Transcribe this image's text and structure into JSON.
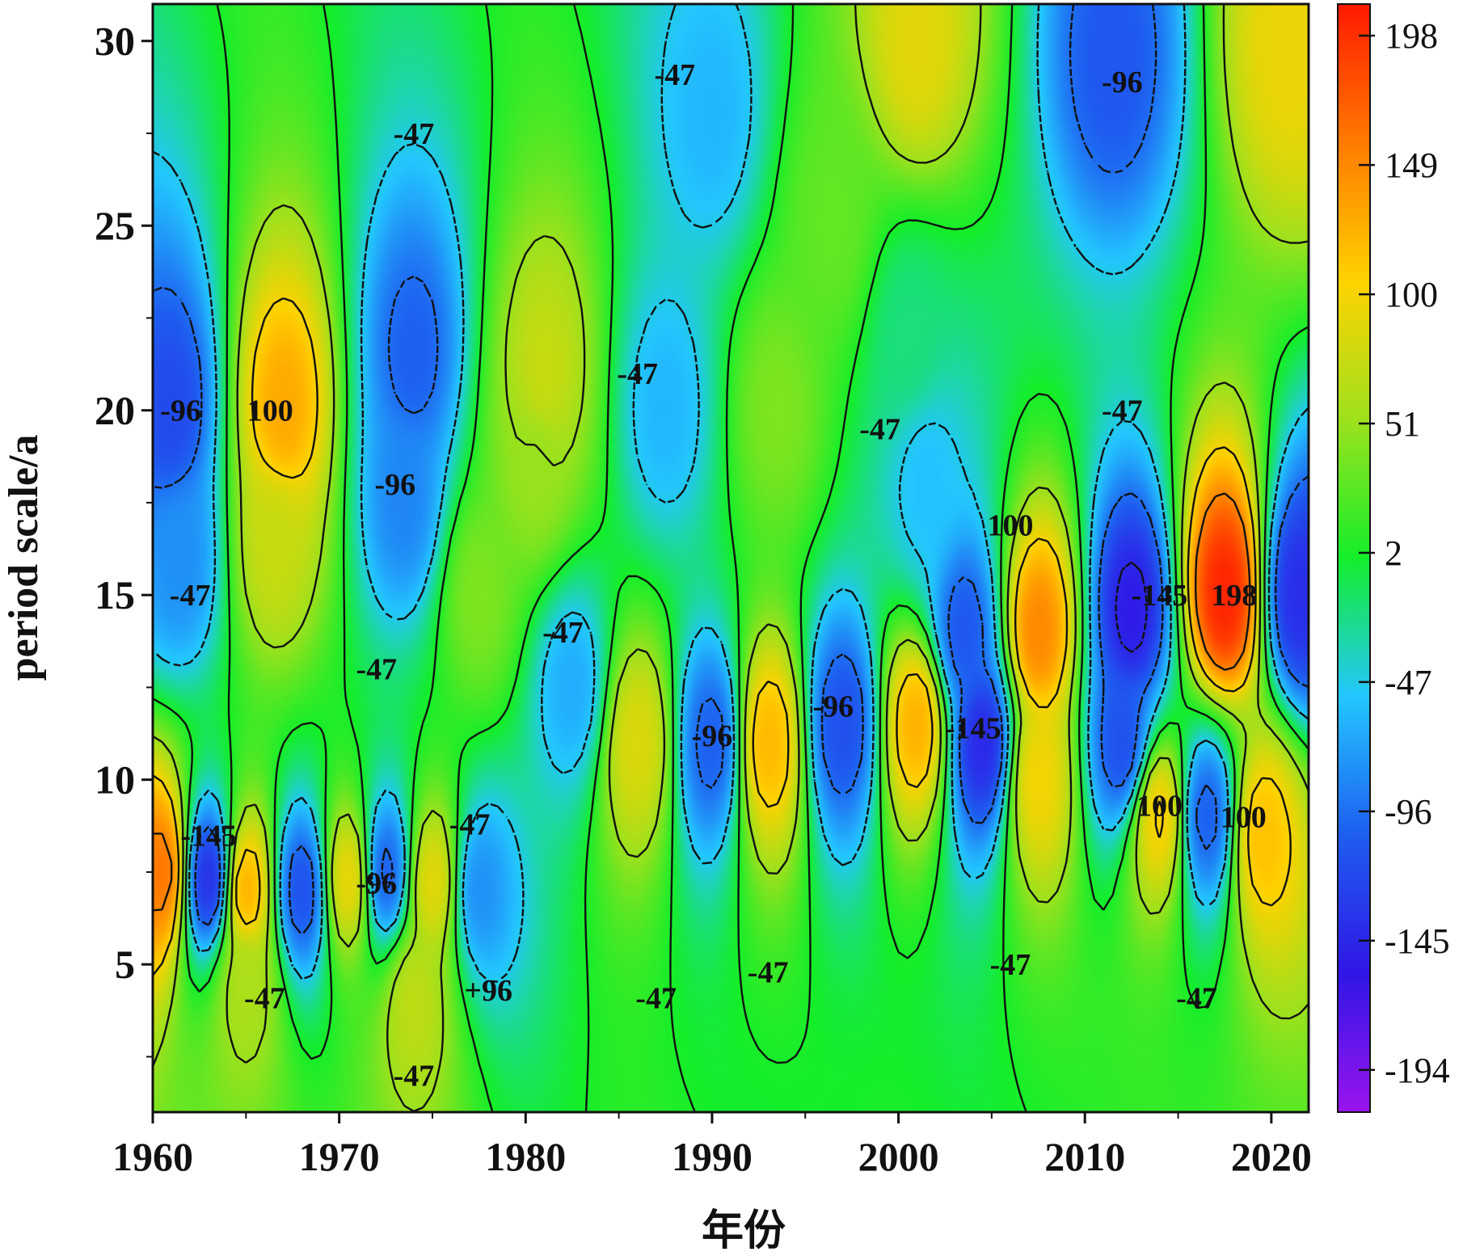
{
  "chart_data": {
    "type": "heatmap",
    "subtype": "filled-contour (wavelet transform real part)",
    "xlabel": "年份",
    "ylabel": "period scale/a",
    "xlim": [
      1960,
      2022
    ],
    "ylim": [
      1,
      31
    ],
    "x_ticks": [
      1960,
      1970,
      1980,
      1990,
      2000,
      2010,
      2020
    ],
    "y_ticks": [
      5,
      10,
      15,
      20,
      25,
      30
    ],
    "colorbar": {
      "range": [
        -210,
        210
      ],
      "ticks": [
        198,
        149,
        100,
        51,
        2,
        -47,
        -96,
        -145,
        -194
      ],
      "colormap": [
        "#9a14ee",
        "#3016e6",
        "#1e5ef0",
        "#23c6ff",
        "#14ee2a",
        "#9ee11d",
        "#ffd200",
        "#ff7a00",
        "#ff1a00"
      ]
    },
    "contour_labels": [
      {
        "text": "-96",
        "x": 1961.5,
        "y": 20.0
      },
      {
        "text": "100",
        "x": 1966.3,
        "y": 20.0
      },
      {
        "text": "-47",
        "x": 1962.0,
        "y": 15.0
      },
      {
        "text": "-47",
        "x": 1974.0,
        "y": 27.5
      },
      {
        "text": "-96",
        "x": 1973.0,
        "y": 18.0
      },
      {
        "text": "-47",
        "x": 1972.0,
        "y": 13.0
      },
      {
        "text": "-47",
        "x": 1988.0,
        "y": 29.1
      },
      {
        "text": "-96",
        "x": 2012.0,
        "y": 28.9
      },
      {
        "text": "-47",
        "x": 1986.0,
        "y": 21.0
      },
      {
        "text": "-47",
        "x": 1999.0,
        "y": 19.5
      },
      {
        "text": "-47",
        "x": 2012.0,
        "y": 20.0
      },
      {
        "text": "100",
        "x": 2006.0,
        "y": 16.9
      },
      {
        "text": "-145",
        "x": 2014.0,
        "y": 15.0
      },
      {
        "text": "198",
        "x": 2018.0,
        "y": 15.0
      },
      {
        "text": "-47",
        "x": 1982.0,
        "y": 14.0
      },
      {
        "text": "-96",
        "x": 1996.5,
        "y": 12.0
      },
      {
        "text": "-96",
        "x": 1990.0,
        "y": 11.2
      },
      {
        "text": "-145",
        "x": 2004.0,
        "y": 11.4
      },
      {
        "text": "100",
        "x": 2014.0,
        "y": 9.3
      },
      {
        "text": "100",
        "x": 2018.5,
        "y": 9.0
      },
      {
        "text": "-145",
        "x": 1963.0,
        "y": 8.5
      },
      {
        "text": "-47",
        "x": 1977.0,
        "y": 8.8
      },
      {
        "text": "-96",
        "x": 1972.0,
        "y": 7.2
      },
      {
        "text": "-47",
        "x": 1966.0,
        "y": 4.1
      },
      {
        "text": "+96",
        "x": 1978.0,
        "y": 4.3
      },
      {
        "text": "-47",
        "x": 1987.0,
        "y": 4.1
      },
      {
        "text": "-47",
        "x": 1993.0,
        "y": 4.8
      },
      {
        "text": "-47",
        "x": 2006.0,
        "y": 5.0
      },
      {
        "text": "-47",
        "x": 2016.0,
        "y": 4.1
      },
      {
        "text": "-47",
        "x": 1974.0,
        "y": 2.0
      }
    ],
    "features": [
      {
        "x": 1967,
        "y": 20.0,
        "value": 130
      },
      {
        "x": 1966.5,
        "y": 16.5,
        "value": 75
      },
      {
        "x": 1961,
        "y": 20.0,
        "value": -120
      },
      {
        "x": 1961.5,
        "y": 16.0,
        "value": -80
      },
      {
        "x": 1974,
        "y": 21.5,
        "value": -105
      },
      {
        "x": 1973.5,
        "y": 17.5,
        "value": -85
      },
      {
        "x": 1981,
        "y": 21.0,
        "value": 75
      },
      {
        "x": 1980.5,
        "y": 18.5,
        "value": 50
      },
      {
        "x": 1987.5,
        "y": 20.0,
        "value": -60
      },
      {
        "x": 1990,
        "y": 28.0,
        "value": -60
      },
      {
        "x": 2011.5,
        "y": 29.5,
        "value": -110
      },
      {
        "x": 2001,
        "y": 30.0,
        "value": 90
      },
      {
        "x": 2021,
        "y": 30.0,
        "value": 95
      },
      {
        "x": 1977.5,
        "y": 15.0,
        "value": 40
      },
      {
        "x": 1982.5,
        "y": 12.5,
        "value": -65
      },
      {
        "x": 1986,
        "y": 11.0,
        "value": 85
      },
      {
        "x": 1990,
        "y": 11.0,
        "value": -105
      },
      {
        "x": 1993,
        "y": 11.0,
        "value": 120
      },
      {
        "x": 1997,
        "y": 11.5,
        "value": -115
      },
      {
        "x": 2001,
        "y": 11.5,
        "value": 125
      },
      {
        "x": 2003.5,
        "y": 14.0,
        "value": -110
      },
      {
        "x": 2004.5,
        "y": 11.0,
        "value": -145
      },
      {
        "x": 2001.5,
        "y": 18.0,
        "value": -55
      },
      {
        "x": 2007.5,
        "y": 14.0,
        "value": 150
      },
      {
        "x": 2007.5,
        "y": 10.0,
        "value": 100
      },
      {
        "x": 2012.5,
        "y": 14.5,
        "value": -155
      },
      {
        "x": 2012,
        "y": 11.0,
        "value": -115
      },
      {
        "x": 2017.5,
        "y": 15.0,
        "value": 205
      },
      {
        "x": 2016.5,
        "y": 9.0,
        "value": -105
      },
      {
        "x": 2014,
        "y": 9.0,
        "value": 105
      },
      {
        "x": 2019.5,
        "y": 8.5,
        "value": 115
      },
      {
        "x": 2021.5,
        "y": 15.0,
        "value": -140
      },
      {
        "x": 1960.5,
        "y": 7.5,
        "value": 160
      },
      {
        "x": 1963,
        "y": 7.3,
        "value": -140
      },
      {
        "x": 1965,
        "y": 7.0,
        "value": 125
      },
      {
        "x": 1968,
        "y": 7.0,
        "value": -115
      },
      {
        "x": 1970.5,
        "y": 7.3,
        "value": 95
      },
      {
        "x": 1972.5,
        "y": 7.5,
        "value": -105
      },
      {
        "x": 1975,
        "y": 7.2,
        "value": 90
      },
      {
        "x": 1977.5,
        "y": 7.0,
        "value": -80
      },
      {
        "x": 1974,
        "y": 4.0,
        "value": 70
      },
      {
        "x": 1965,
        "y": 4.5,
        "value": 60
      },
      {
        "x": 1996.5,
        "y": 25.0,
        "value": 30
      },
      {
        "x": 2000.5,
        "y": 22.0,
        "value": -20
      },
      {
        "x": 1993.5,
        "y": 20.0,
        "value": 40
      }
    ]
  }
}
